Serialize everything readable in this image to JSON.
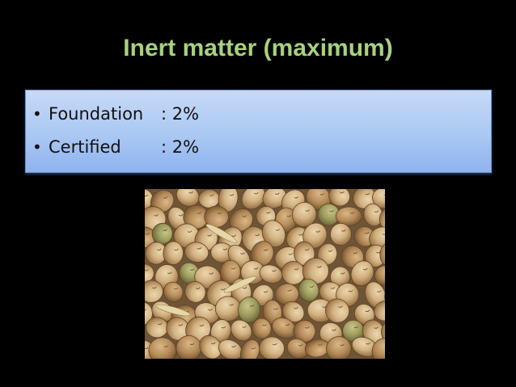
{
  "slide": {
    "title": "Inert matter (maximum)",
    "bullets": [
      {
        "mark": "•",
        "label": "Foundation",
        "value": ": 2%"
      },
      {
        "mark": "•",
        "label": "Certified",
        "value": ": 2%"
      }
    ]
  },
  "colors": {
    "background": "#000000",
    "title": "#a7d27f",
    "box_top": "#c7d9f6",
    "box_bottom": "#8fb3ee",
    "seed_light": "#d9bc8f",
    "seed_dark": "#a97f51",
    "seed_green": "#9c9a5c"
  },
  "photo": {
    "subject": "chickpea-seeds-image"
  }
}
